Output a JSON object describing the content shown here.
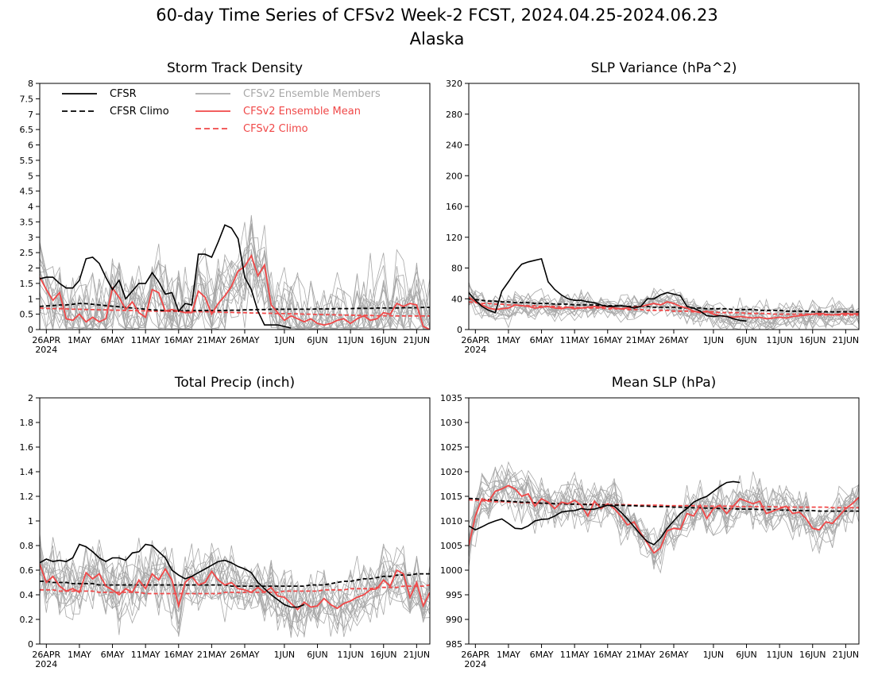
{
  "figure": {
    "title": "60-day Time Series of CFSv2 Week-2 FCST, 2024.04.25-2024.06.23",
    "subtitle": "Alaska"
  },
  "colors": {
    "cfsr": "#000000",
    "cfsr_climo": "#000000",
    "members": "#a8a8a8",
    "ens_mean": "#f04848",
    "cfsv2_climo": "#f04848"
  },
  "legend": [
    {
      "key": "cfsr",
      "label": "CFSR",
      "style": "solid",
      "color": "#000000"
    },
    {
      "key": "cfsr_climo",
      "label": "CFSR Climo",
      "style": "dashed",
      "color": "#000000"
    },
    {
      "key": "members",
      "label": "CFSv2 Ensemble Members",
      "style": "solid",
      "color": "#a8a8a8"
    },
    {
      "key": "ens_mean",
      "label": "CFSv2 Ensemble Mean",
      "style": "solid",
      "color": "#f04848"
    },
    {
      "key": "cfsv2_climo",
      "label": "CFSv2 Climo",
      "style": "dashed",
      "color": "#f04848"
    }
  ],
  "x_axis": {
    "n_days": 60,
    "tick_days": [
      1,
      6,
      11,
      16,
      21,
      26,
      31,
      37,
      42,
      47,
      52,
      57
    ],
    "tick_labels": [
      "26APR",
      "1MAY",
      "6MAY",
      "11MAY",
      "16MAY",
      "21MAY",
      "26MAY",
      "1JUN",
      "6JUN",
      "11JUN",
      "16JUN",
      "21JUN"
    ],
    "year_label": "2024"
  },
  "chart_data": [
    {
      "type": "line",
      "title": "Storm Track Density",
      "ylim": [
        0,
        8
      ],
      "yticks": [
        "0",
        "0.5",
        "1",
        "1.5",
        "2",
        "2.5",
        "3",
        "3.5",
        "4",
        "4.5",
        "5",
        "5.5",
        "6",
        "6.5",
        "7",
        "7.5",
        "8"
      ],
      "ytick_values": [
        0,
        0.5,
        1,
        1.5,
        2,
        2.5,
        3,
        3.5,
        4,
        4.5,
        5,
        5.5,
        6,
        6.5,
        7,
        7.5,
        8
      ],
      "show_legend": true,
      "members_noise": 0.75,
      "members_floor": 0,
      "cfsr": [
        1.65,
        1.7,
        1.7,
        1.5,
        1.35,
        1.35,
        1.6,
        2.3,
        2.35,
        2.15,
        1.7,
        1.3,
        1.6,
        1.0,
        1.25,
        1.5,
        1.5,
        1.85,
        1.55,
        1.15,
        1.2,
        0.6,
        0.85,
        0.8,
        2.45,
        2.45,
        2.35,
        2.85,
        3.4,
        3.3,
        2.95,
        1.7,
        1.3,
        0.6,
        0.15,
        0.15,
        0.15,
        0.1,
        0.05
      ],
      "cfsr_climo": [
        0.75,
        0.77,
        0.78,
        0.8,
        0.8,
        0.82,
        0.85,
        0.84,
        0.82,
        0.8,
        0.78,
        0.76,
        0.74,
        0.72,
        0.7,
        0.68,
        0.66,
        0.64,
        0.63,
        0.62,
        0.62,
        0.61,
        0.61,
        0.62,
        0.62,
        0.62,
        0.62,
        0.62,
        0.62,
        0.63,
        0.63,
        0.64,
        0.64,
        0.65,
        0.65,
        0.66,
        0.66,
        0.66,
        0.66,
        0.66,
        0.66,
        0.66,
        0.67,
        0.67,
        0.67,
        0.68,
        0.68,
        0.68,
        0.69,
        0.69,
        0.69,
        0.7,
        0.7,
        0.7,
        0.7,
        0.71,
        0.71,
        0.71,
        0.72,
        0.72
      ],
      "ens_mean": [
        1.7,
        1.3,
        0.95,
        1.2,
        0.35,
        0.3,
        0.5,
        0.25,
        0.4,
        0.25,
        0.35,
        1.35,
        1.05,
        0.65,
        0.9,
        0.55,
        0.4,
        1.3,
        1.2,
        0.6,
        0.65,
        0.6,
        0.55,
        0.55,
        1.25,
        1.05,
        0.5,
        0.85,
        1.1,
        1.4,
        1.9,
        2.05,
        2.4,
        1.75,
        2.1,
        0.8,
        0.55,
        0.3,
        0.45,
        0.35,
        0.25,
        0.35,
        0.2,
        0.15,
        0.2,
        0.3,
        0.35,
        0.2,
        0.35,
        0.45,
        0.3,
        0.35,
        0.55,
        0.5,
        0.85,
        0.75,
        0.85,
        0.8,
        0.1,
        0.0
      ],
      "cfsv2_climo": [
        0.7,
        0.69,
        0.68,
        0.68,
        0.67,
        0.66,
        0.66,
        0.65,
        0.65,
        0.64,
        0.64,
        0.63,
        0.63,
        0.62,
        0.62,
        0.61,
        0.61,
        0.6,
        0.6,
        0.6,
        0.59,
        0.59,
        0.59,
        0.58,
        0.58,
        0.58,
        0.57,
        0.57,
        0.56,
        0.56,
        0.55,
        0.55,
        0.54,
        0.54,
        0.53,
        0.53,
        0.52,
        0.52,
        0.51,
        0.51,
        0.5,
        0.5,
        0.49,
        0.49,
        0.48,
        0.48,
        0.47,
        0.47,
        0.46,
        0.46,
        0.46,
        0.45,
        0.45,
        0.45,
        0.44,
        0.44,
        0.44,
        0.44,
        0.44,
        0.44
      ]
    },
    {
      "type": "line",
      "title": "SLP Variance (hPa^2)",
      "ylim": [
        0,
        320
      ],
      "yticks": [
        "0",
        "40",
        "80",
        "120",
        "160",
        "200",
        "240",
        "280",
        "320"
      ],
      "ytick_values": [
        0,
        40,
        80,
        120,
        160,
        200,
        240,
        280,
        320
      ],
      "show_legend": false,
      "members_noise": 9,
      "members_floor": 0,
      "cfsr": [
        48,
        38,
        30,
        25,
        22,
        50,
        62,
        75,
        85,
        88,
        90,
        92,
        62,
        52,
        45,
        40,
        38,
        38,
        36,
        35,
        32,
        30,
        30,
        31,
        30,
        28,
        30,
        40,
        40,
        45,
        48,
        46,
        44,
        30,
        28,
        24,
        18,
        17,
        18,
        17,
        14,
        12,
        11
      ],
      "cfsr_climo": [
        40,
        39,
        38,
        37,
        37,
        36,
        36,
        35,
        35,
        35,
        34,
        34,
        34,
        33,
        33,
        33,
        32,
        32,
        32,
        32,
        31,
        31,
        31,
        31,
        30,
        30,
        30,
        30,
        29,
        29,
        29,
        29,
        28,
        28,
        28,
        28,
        27,
        27,
        27,
        27,
        26,
        26,
        26,
        26,
        25,
        25,
        25,
        25,
        24,
        24,
        24,
        24,
        23,
        23,
        23,
        23,
        23,
        23,
        23,
        23
      ],
      "ens_mean": [
        42,
        36,
        32,
        28,
        26,
        27,
        28,
        32,
        31,
        30,
        28,
        29,
        30,
        28,
        27,
        29,
        27,
        28,
        29,
        30,
        29,
        30,
        28,
        27,
        28,
        29,
        30,
        32,
        34,
        32,
        36,
        34,
        30,
        28,
        24,
        22,
        24,
        20,
        18,
        17,
        16,
        17,
        16,
        15,
        16,
        14,
        15,
        16,
        15,
        17,
        18,
        19,
        20,
        21,
        20,
        19,
        20,
        21,
        20,
        21
      ],
      "cfsv2_climo": [
        36,
        35,
        34,
        34,
        33,
        33,
        32,
        32,
        31,
        31,
        31,
        30,
        30,
        30,
        29,
        29,
        29,
        28,
        28,
        28,
        28,
        27,
        27,
        27,
        26,
        26,
        26,
        25,
        25,
        25,
        25,
        24,
        24,
        24,
        23,
        23,
        23,
        23,
        22,
        22,
        22,
        22,
        21,
        21,
        21,
        21,
        20,
        20,
        20,
        20,
        20,
        20,
        20,
        19,
        19,
        19,
        19,
        19,
        19,
        19
      ]
    },
    {
      "type": "line",
      "title": "Total Precip (inch)",
      "ylim": [
        0,
        2
      ],
      "yticks": [
        "0",
        "0.2",
        "0.4",
        "0.6",
        "0.8",
        "1",
        "1.2",
        "1.4",
        "1.6",
        "1.8",
        "2"
      ],
      "ytick_values": [
        0,
        0.2,
        0.4,
        0.6,
        0.8,
        1,
        1.2,
        1.4,
        1.6,
        1.8,
        2
      ],
      "show_legend": false,
      "members_noise": 0.13,
      "members_floor": 0.05,
      "cfsr": [
        0.66,
        0.69,
        0.67,
        0.68,
        0.67,
        0.7,
        0.81,
        0.79,
        0.75,
        0.7,
        0.67,
        0.7,
        0.7,
        0.68,
        0.74,
        0.75,
        0.81,
        0.8,
        0.75,
        0.7,
        0.6,
        0.56,
        0.53,
        0.55,
        0.58,
        0.61,
        0.64,
        0.67,
        0.68,
        0.66,
        0.63,
        0.61,
        0.58,
        0.5,
        0.45,
        0.4,
        0.36,
        0.32,
        0.3,
        0.3,
        0.32
      ],
      "cfsr_climo": [
        0.51,
        0.51,
        0.5,
        0.5,
        0.5,
        0.49,
        0.49,
        0.49,
        0.49,
        0.48,
        0.48,
        0.48,
        0.48,
        0.48,
        0.48,
        0.48,
        0.48,
        0.48,
        0.48,
        0.48,
        0.48,
        0.48,
        0.48,
        0.48,
        0.48,
        0.48,
        0.48,
        0.48,
        0.48,
        0.47,
        0.47,
        0.47,
        0.47,
        0.47,
        0.47,
        0.47,
        0.47,
        0.47,
        0.47,
        0.47,
        0.47,
        0.48,
        0.48,
        0.48,
        0.49,
        0.5,
        0.51,
        0.51,
        0.52,
        0.53,
        0.53,
        0.54,
        0.55,
        0.55,
        0.56,
        0.56,
        0.56,
        0.57,
        0.57,
        0.57
      ],
      "ens_mean": [
        0.65,
        0.5,
        0.55,
        0.47,
        0.43,
        0.45,
        0.42,
        0.58,
        0.53,
        0.57,
        0.47,
        0.44,
        0.4,
        0.45,
        0.42,
        0.52,
        0.45,
        0.57,
        0.52,
        0.61,
        0.52,
        0.31,
        0.5,
        0.55,
        0.48,
        0.5,
        0.59,
        0.52,
        0.48,
        0.5,
        0.45,
        0.44,
        0.42,
        0.46,
        0.42,
        0.46,
        0.39,
        0.38,
        0.33,
        0.28,
        0.34,
        0.3,
        0.31,
        0.37,
        0.32,
        0.29,
        0.33,
        0.35,
        0.38,
        0.4,
        0.44,
        0.45,
        0.52,
        0.47,
        0.6,
        0.57,
        0.38,
        0.5,
        0.31,
        0.42
      ],
      "cfsv2_climo": [
        0.44,
        0.44,
        0.44,
        0.43,
        0.43,
        0.43,
        0.43,
        0.43,
        0.43,
        0.42,
        0.42,
        0.42,
        0.42,
        0.42,
        0.42,
        0.42,
        0.41,
        0.41,
        0.41,
        0.41,
        0.41,
        0.41,
        0.41,
        0.41,
        0.41,
        0.41,
        0.41,
        0.41,
        0.42,
        0.42,
        0.42,
        0.42,
        0.42,
        0.42,
        0.42,
        0.42,
        0.42,
        0.43,
        0.43,
        0.43,
        0.43,
        0.43,
        0.43,
        0.44,
        0.44,
        0.44,
        0.44,
        0.45,
        0.45,
        0.45,
        0.45,
        0.46,
        0.46,
        0.46,
        0.46,
        0.47,
        0.47,
        0.47,
        0.47,
        0.48
      ]
    },
    {
      "type": "line",
      "title": "Mean SLP (hPa)",
      "ylim": [
        985,
        1035
      ],
      "yticks": [
        "985",
        "990",
        "995",
        "1000",
        "1005",
        "1010",
        "1015",
        "1020",
        "1025",
        "1030",
        "1035"
      ],
      "ytick_values": [
        985,
        990,
        995,
        1000,
        1005,
        1010,
        1015,
        1020,
        1025,
        1030,
        1035
      ],
      "show_legend": false,
      "members_noise": 2.4,
      "members_floor": 985,
      "cfsr": [
        1009,
        1008.2,
        1008.8,
        1009.5,
        1010,
        1010.4,
        1009.5,
        1008.5,
        1008.4,
        1009,
        1010,
        1010.3,
        1010.4,
        1011,
        1011.8,
        1012,
        1012.1,
        1012.5,
        1012.3,
        1012.4,
        1012.8,
        1013.2,
        1013,
        1011.8,
        1010.4,
        1008.8,
        1007.2,
        1005.8,
        1005.2,
        1006.5,
        1008.5,
        1010,
        1011.5,
        1012.5,
        1013.8,
        1014.5,
        1015,
        1016,
        1017,
        1017.8,
        1018,
        1017.8
      ],
      "cfsr_climo": [
        1014.6,
        1014.5,
        1014.4,
        1014.3,
        1014.2,
        1014.1,
        1014.0,
        1013.9,
        1013.8,
        1013.8,
        1013.7,
        1013.6,
        1013.6,
        1013.5,
        1013.5,
        1013.4,
        1013.4,
        1013.4,
        1013.3,
        1013.3,
        1013.3,
        1013.2,
        1013.2,
        1013.2,
        1013.1,
        1013.1,
        1013.0,
        1013.0,
        1012.9,
        1012.9,
        1012.9,
        1012.8,
        1012.8,
        1012.7,
        1012.7,
        1012.7,
        1012.6,
        1012.6,
        1012.5,
        1012.5,
        1012.5,
        1012.4,
        1012.4,
        1012.4,
        1012.3,
        1012.3,
        1012.3,
        1012.2,
        1012.2,
        1012.2,
        1012.1,
        1012.1,
        1012.1,
        1012.0,
        1012.0,
        1012.0,
        1012.0,
        1012.0,
        1012.0,
        1012.0
      ],
      "ens_mean": [
        1005,
        1011,
        1014.5,
        1014,
        1016,
        1016.5,
        1017.2,
        1016.5,
        1015,
        1015.5,
        1013,
        1014.5,
        1013.8,
        1012.5,
        1013.8,
        1013.5,
        1014.2,
        1013.2,
        1011,
        1014,
        1012.5,
        1013.5,
        1012.5,
        1011,
        1009.2,
        1009.8,
        1007.5,
        1005.5,
        1003.5,
        1004.5,
        1008,
        1008.5,
        1008.3,
        1011.5,
        1011,
        1013.2,
        1010.5,
        1012.5,
        1013.2,
        1011.5,
        1013,
        1014.5,
        1014,
        1013.5,
        1014,
        1011.5,
        1012,
        1012.5,
        1013,
        1011.5,
        1011.8,
        1010.5,
        1008.5,
        1008.2,
        1009.8,
        1009.5,
        1011,
        1012.5,
        1013.5,
        1014.8
      ],
      "cfsv2_climo": [
        1014.3,
        1014.2,
        1014.1,
        1014.0,
        1013.9,
        1013.9,
        1013.8,
        1013.8,
        1013.7,
        1013.7,
        1013.6,
        1013.6,
        1013.6,
        1013.5,
        1013.5,
        1013.5,
        1013.4,
        1013.4,
        1013.4,
        1013.4,
        1013.3,
        1013.3,
        1013.3,
        1013.3,
        1013.3,
        1013.2,
        1013.2,
        1013.2,
        1013.2,
        1013.2,
        1013.1,
        1013.1,
        1013.1,
        1013.1,
        1013.1,
        1013.0,
        1013.0,
        1013.0,
        1013.0,
        1013.0,
        1013.0,
        1012.9,
        1012.9,
        1012.9,
        1012.9,
        1012.9,
        1012.9,
        1012.8,
        1012.8,
        1012.8,
        1012.8,
        1012.8,
        1012.8,
        1012.8,
        1012.8,
        1012.7,
        1012.7,
        1012.7,
        1012.7,
        1012.7
      ]
    }
  ]
}
